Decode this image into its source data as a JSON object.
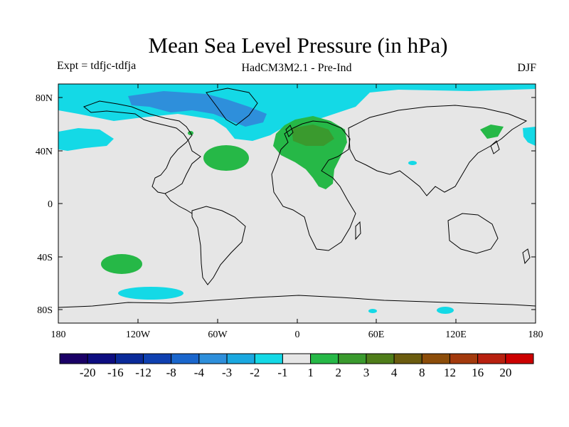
{
  "title": "Mean Sea Level Pressure (in hPa)",
  "experiment": "Expt = tdfjc-tdfja",
  "model": "HadCM3M2.1 - Pre-Ind",
  "season": "DJF",
  "map": {
    "lat_ticks": [
      "80N",
      "40N",
      "0",
      "40S",
      "80S"
    ],
    "lon_ticks": [
      "180",
      "120W",
      "60W",
      "0",
      "60E",
      "120E",
      "180"
    ],
    "background_color": "#e6e6e6"
  },
  "colorbar": {
    "colors": [
      "#1a0066",
      "#0d0d80",
      "#0a2a99",
      "#0f40b0",
      "#1a66cc",
      "#2e8fdb",
      "#1aa8e0",
      "#14d9e6",
      "#e6e6e6",
      "#26b847",
      "#3a9a2e",
      "#4f7d1a",
      "#6b5c0f",
      "#8c4d0a",
      "#a33a0d",
      "#b8200f",
      "#cc0000"
    ],
    "labels": [
      "-20",
      "-16",
      "-12",
      "-8",
      "-4",
      "-3",
      "-2",
      "-1",
      "1",
      "2",
      "3",
      "4",
      "8",
      "12",
      "16",
      "20"
    ]
  }
}
